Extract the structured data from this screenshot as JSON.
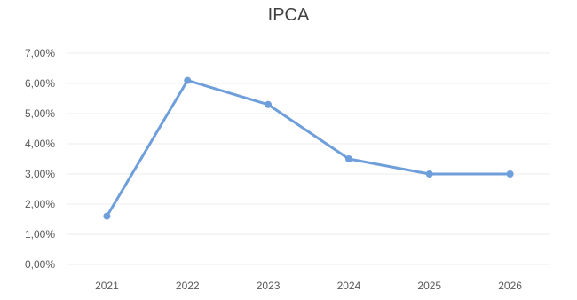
{
  "chart_data": {
    "type": "line",
    "title": "IPCA",
    "xlabel": "",
    "ylabel": "",
    "categories": [
      "2021",
      "2022",
      "2023",
      "2024",
      "2025",
      "2026"
    ],
    "series": [
      {
        "values": [
          1.6,
          6.1,
          5.3,
          3.5,
          3.0,
          3.0
        ]
      }
    ],
    "ylim": [
      0,
      7
    ],
    "y_ticks": [
      {
        "value": 0,
        "label": "0,00%"
      },
      {
        "value": 1,
        "label": "1,00%"
      },
      {
        "value": 2,
        "label": "2,00%"
      },
      {
        "value": 3,
        "label": "3,00%"
      },
      {
        "value": 4,
        "label": "4,00%"
      },
      {
        "value": 5,
        "label": "5,00%"
      },
      {
        "value": 6,
        "label": "6,00%"
      },
      {
        "value": 7,
        "label": "7,00%"
      }
    ],
    "grid": true,
    "legend": "none",
    "line_color": "#6f9fdb"
  }
}
